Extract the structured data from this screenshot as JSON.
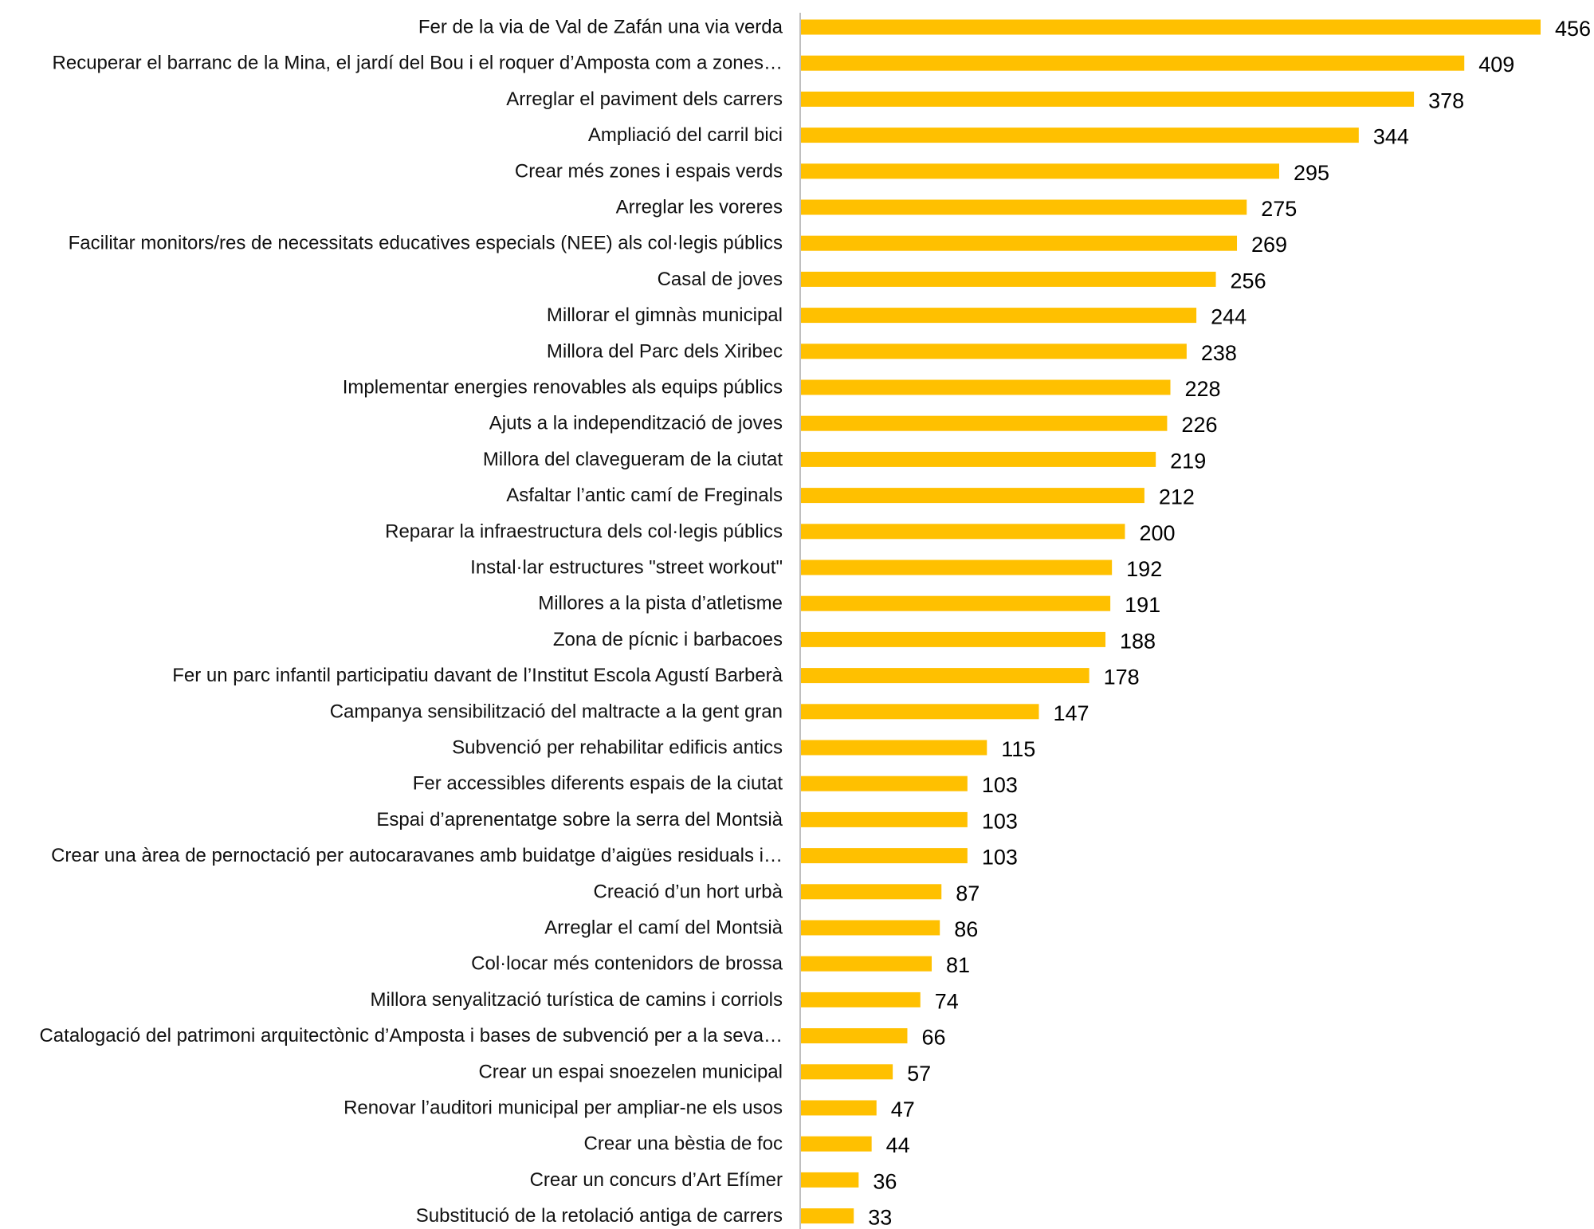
{
  "chart_data": {
    "type": "bar",
    "orientation": "horizontal",
    "title": "",
    "xlabel": "",
    "ylabel": "",
    "xlim": [
      0,
      456
    ],
    "grid": false,
    "legend": "none",
    "bar_color": "#FFC000",
    "axis_color": "#BFBFBF",
    "categories": [
      "Fer de la via de Val de Zafán una via verda",
      "Recuperar el barranc de la Mina, el jardí del Bou i el roquer d’Amposta com a zones…",
      "Arreglar el paviment dels carrers",
      "Ampliació del carril bici",
      "Crear més zones i espais verds",
      "Arreglar les voreres",
      "Facilitar monitors/res de necessitats educatives especials (NEE) als col·legis públics",
      "Casal de joves",
      "Millorar el gimnàs municipal",
      "Millora del Parc dels Xiribec",
      "Implementar energies renovables als equips públics",
      "Ajuts a la independització de joves",
      "Millora del clavegueram de la ciutat",
      "Asfaltar l’antic camí de Freginals",
      "Reparar la infraestructura dels col·legis públics",
      "Instal·lar estructures \"street workout\"",
      "Millores a la pista d’atletisme",
      "Zona de pícnic i barbacoes",
      "Fer un parc infantil participatiu davant de l’Institut Escola Agustí Barberà",
      "Campanya sensibilització del maltracte a la gent gran",
      "Subvenció per rehabilitar edificis antics",
      "Fer accessibles diferents espais de la ciutat",
      "Espai d’aprenentatge sobre la serra del Montsià",
      "Crear una àrea de pernoctació per autocaravanes amb buidatge d’aigües residuals i…",
      "Creació d’un hort urbà",
      "Arreglar el camí del Montsià",
      "Col·locar més contenidors de brossa",
      "Millora senyalització turística de camins i corriols",
      "Catalogació del patrimoni arquitectònic d’Amposta i bases de subvenció per a la seva…",
      "Crear un espai snoezelen municipal",
      "Renovar l’auditori municipal per ampliar-ne els usos",
      "Crear una bèstia de foc",
      "Crear un concurs d’Art Efímer",
      "Substitució de la retolació antiga de carrers"
    ],
    "values": [
      456,
      409,
      378,
      344,
      295,
      275,
      269,
      256,
      244,
      238,
      228,
      226,
      219,
      212,
      200,
      192,
      191,
      188,
      178,
      147,
      115,
      103,
      103,
      103,
      87,
      86,
      81,
      74,
      66,
      57,
      47,
      44,
      36,
      33
    ]
  }
}
